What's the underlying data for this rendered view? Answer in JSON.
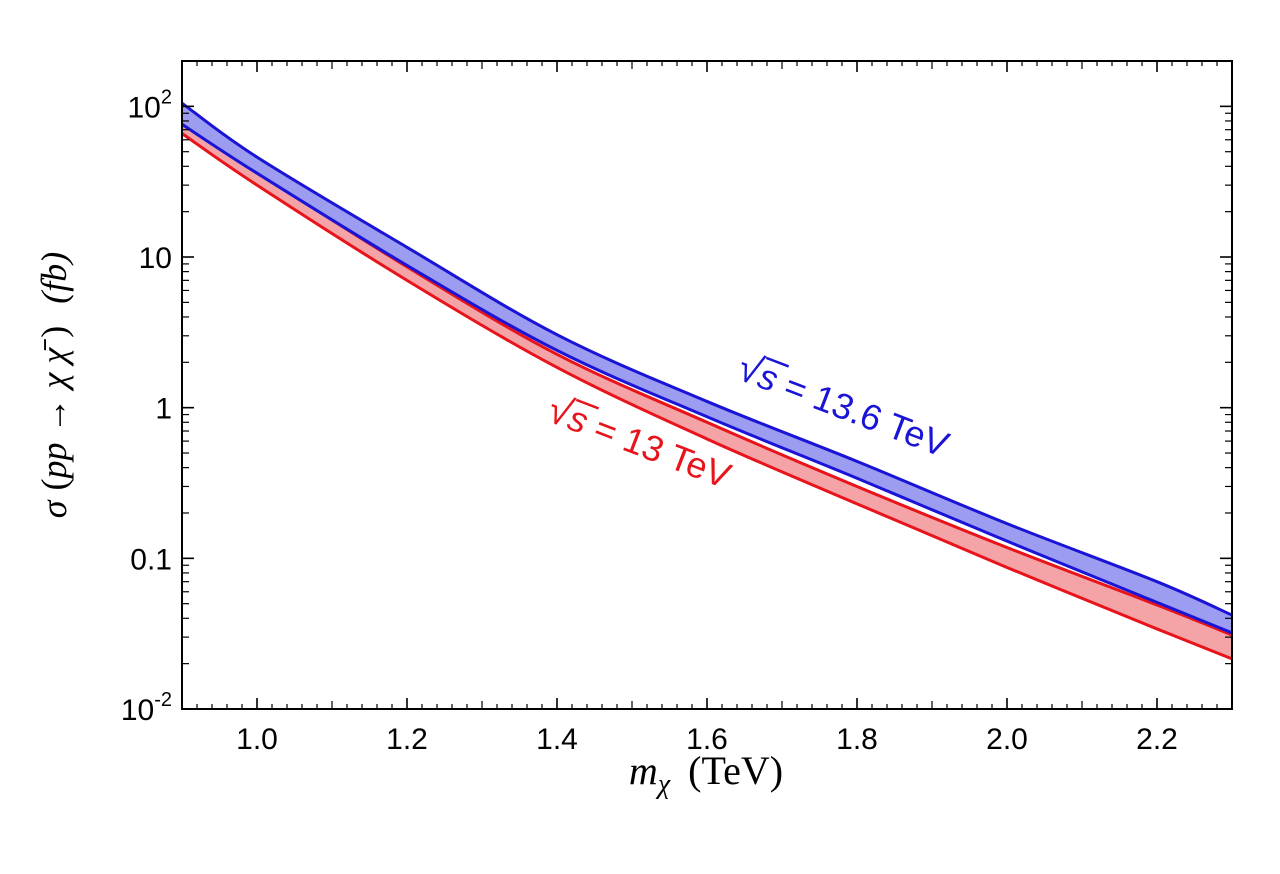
{
  "chart_data": {
    "type": "area",
    "title": "",
    "xlabel": {
      "var": "m",
      "sub": "χ",
      "unit": "(TeV)"
    },
    "ylabel": {
      "sigma": "σ",
      "open": "(",
      "process": "pp → χ χ̄",
      "close": ")",
      "unit": "(fb)"
    },
    "xlim": [
      0.9,
      2.3
    ],
    "ylim": [
      0.01,
      200
    ],
    "yscale": "log",
    "x_ticks": [
      1.0,
      1.2,
      1.4,
      1.6,
      1.8,
      2.0,
      2.2
    ],
    "x_tick_labels": [
      "1.0",
      "1.2",
      "1.4",
      "1.6",
      "1.8",
      "2.0",
      "2.2"
    ],
    "y_ticks": [
      {
        "value": 0.01,
        "base": "10",
        "exp": "-2"
      },
      {
        "value": 0.1,
        "label": "0.1"
      },
      {
        "value": 1,
        "label": "1"
      },
      {
        "value": 10,
        "label": "10"
      },
      {
        "value": 100,
        "base": "10",
        "exp": "2"
      }
    ],
    "grid": false,
    "x": [
      0.9,
      1.0,
      1.2,
      1.4,
      1.6,
      1.8,
      2.0,
      2.2,
      2.3
    ],
    "series": [
      {
        "name": "13 TeV",
        "color": "#e8141b",
        "fill": "#f4a3a6",
        "upper": [
          82,
          37,
          8.6,
          2.26,
          0.8,
          0.3,
          0.118,
          0.049,
          0.031
        ],
        "lower": [
          66,
          30,
          7.0,
          1.85,
          0.62,
          0.23,
          0.087,
          0.034,
          0.0215
        ]
      },
      {
        "name": "13.6 TeV",
        "color": "#1a14d6",
        "fill": "#9c9cf0",
        "upper": [
          105,
          46,
          11.6,
          3.05,
          1.1,
          0.44,
          0.17,
          0.07,
          0.042
        ],
        "lower": [
          76,
          36,
          8.8,
          2.4,
          0.87,
          0.34,
          0.13,
          0.051,
          0.032
        ]
      }
    ],
    "annotations": [
      {
        "series": "13.6 TeV",
        "sqrt": "√",
        "var": "s",
        "text": " = 13.6 TeV",
        "color": "#1a14d6"
      },
      {
        "series": "13 TeV",
        "sqrt": "√",
        "var": "s",
        "text": " = 13 TeV",
        "color": "#e8141b"
      }
    ]
  }
}
